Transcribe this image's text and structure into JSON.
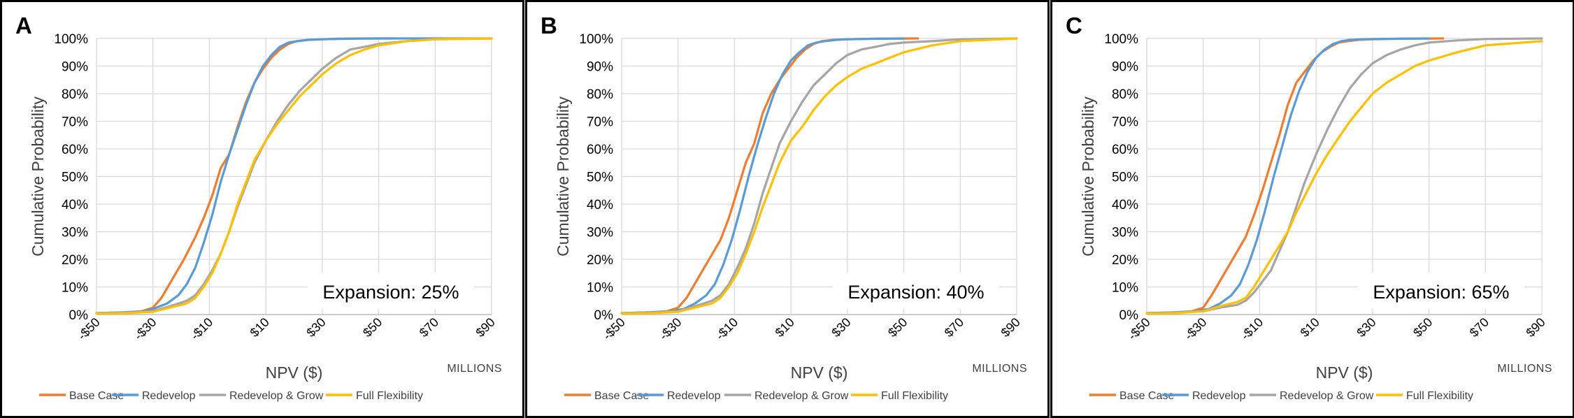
{
  "axis_common": {
    "x_ticks": [
      "-$50",
      "-$30",
      "-$10",
      "$10",
      "$30",
      "$50",
      "$70",
      "$90"
    ],
    "y_ticks": [
      "0%",
      "10%",
      "20%",
      "30%",
      "40%",
      "50%",
      "60%",
      "70%",
      "80%",
      "90%",
      "100%"
    ],
    "xlabel": "NPV ($)",
    "ylabel": "Cumulative Probability",
    "x_units_note": "MILLIONS"
  },
  "legend": [
    {
      "name": "Base Case",
      "color": "#ED7D31"
    },
    {
      "name": "Redevelop",
      "color": "#5B9BD5"
    },
    {
      "name": "Redevelop & Grow",
      "color": "#A5A5A5"
    },
    {
      "name": "Full Flexibility",
      "color": "#FFC000"
    }
  ],
  "chart_data": [
    {
      "panel_label": "A",
      "annotation": "Expansion: 25%",
      "type": "line",
      "xlim": [
        -50,
        90
      ],
      "ylim": [
        0,
        1
      ],
      "grid": true,
      "legend_position": "bottom",
      "series": [
        {
          "name": "Base Case",
          "color": "#ED7D31",
          "x": [
            -50,
            -40,
            -34,
            -30,
            -27,
            -23,
            -19,
            -15,
            -12,
            -9,
            -6,
            -3,
            0,
            3,
            6,
            9,
            12,
            15,
            18,
            21,
            25,
            30,
            35,
            45,
            55
          ],
          "y": [
            0.005,
            0.008,
            0.012,
            0.025,
            0.06,
            0.13,
            0.2,
            0.28,
            0.35,
            0.43,
            0.53,
            0.58,
            0.68,
            0.77,
            0.84,
            0.89,
            0.93,
            0.96,
            0.98,
            0.99,
            0.995,
            0.997,
            0.999,
            1,
            1
          ]
        },
        {
          "name": "Redevelop",
          "color": "#5B9BD5",
          "x": [
            -50,
            -40,
            -33,
            -30,
            -25,
            -21,
            -18,
            -15,
            -12,
            -9,
            -6,
            -3,
            0,
            3,
            6,
            9,
            12,
            15,
            18,
            21,
            25,
            30,
            40,
            50,
            90
          ],
          "y": [
            0.005,
            0.008,
            0.012,
            0.02,
            0.04,
            0.07,
            0.11,
            0.17,
            0.26,
            0.36,
            0.48,
            0.58,
            0.67,
            0.76,
            0.84,
            0.9,
            0.94,
            0.97,
            0.985,
            0.99,
            0.995,
            0.997,
            0.999,
            1,
            1
          ]
        },
        {
          "name": "Redevelop & Grow",
          "color": "#A5A5A5",
          "x": [
            -50,
            -40,
            -30,
            -24,
            -18,
            -15,
            -12,
            -9,
            -6,
            -3,
            0,
            3,
            6,
            10,
            14,
            18,
            22,
            26,
            30,
            35,
            40,
            45,
            50,
            60,
            70,
            90
          ],
          "y": [
            0.004,
            0.006,
            0.012,
            0.03,
            0.05,
            0.07,
            0.11,
            0.16,
            0.22,
            0.3,
            0.39,
            0.47,
            0.55,
            0.63,
            0.7,
            0.76,
            0.81,
            0.85,
            0.89,
            0.93,
            0.96,
            0.97,
            0.98,
            0.99,
            0.997,
            1
          ]
        },
        {
          "name": "Full Flexibility",
          "color": "#FFC000",
          "x": [
            -50,
            -40,
            -30,
            -24,
            -18,
            -15,
            -12,
            -9,
            -6,
            -3,
            0,
            3,
            6,
            10,
            14,
            18,
            22,
            26,
            30,
            35,
            40,
            45,
            50,
            60,
            70,
            90
          ],
          "y": [
            0.004,
            0.005,
            0.01,
            0.025,
            0.04,
            0.06,
            0.1,
            0.15,
            0.22,
            0.3,
            0.4,
            0.48,
            0.56,
            0.63,
            0.69,
            0.74,
            0.79,
            0.83,
            0.87,
            0.91,
            0.94,
            0.96,
            0.975,
            0.99,
            0.997,
            1
          ]
        }
      ]
    },
    {
      "panel_label": "B",
      "annotation": "Expansion: 40%",
      "type": "line",
      "xlim": [
        -50,
        90
      ],
      "ylim": [
        0,
        1
      ],
      "grid": true,
      "legend_position": "bottom",
      "series": [
        {
          "name": "Base Case",
          "color": "#ED7D31",
          "x": [
            -50,
            -40,
            -34,
            -30,
            -27,
            -23,
            -19,
            -15,
            -12,
            -9,
            -6,
            -3,
            0,
            3,
            6,
            9,
            12,
            15,
            18,
            21,
            25,
            30,
            40,
            55
          ],
          "y": [
            0.005,
            0.008,
            0.012,
            0.025,
            0.06,
            0.13,
            0.2,
            0.27,
            0.35,
            0.45,
            0.55,
            0.62,
            0.73,
            0.8,
            0.85,
            0.89,
            0.93,
            0.96,
            0.98,
            0.99,
            0.995,
            0.997,
            0.999,
            1
          ]
        },
        {
          "name": "Redevelop",
          "color": "#5B9BD5",
          "x": [
            -50,
            -40,
            -33,
            -28,
            -24,
            -20,
            -17,
            -14,
            -11,
            -8,
            -5,
            -2,
            1,
            4,
            7,
            10,
            13,
            16,
            19,
            22,
            26,
            30,
            40,
            50
          ],
          "y": [
            0.005,
            0.008,
            0.012,
            0.02,
            0.04,
            0.07,
            0.11,
            0.18,
            0.27,
            0.38,
            0.5,
            0.61,
            0.71,
            0.8,
            0.87,
            0.92,
            0.95,
            0.975,
            0.985,
            0.99,
            0.995,
            0.997,
            0.999,
            1
          ]
        },
        {
          "name": "Redevelop & Grow",
          "color": "#A5A5A5",
          "x": [
            -50,
            -40,
            -30,
            -24,
            -18,
            -15,
            -12,
            -9,
            -6,
            -3,
            0,
            3,
            6,
            10,
            14,
            18,
            22,
            26,
            30,
            35,
            40,
            45,
            50,
            60,
            70,
            90
          ],
          "y": [
            0.004,
            0.006,
            0.012,
            0.03,
            0.05,
            0.07,
            0.11,
            0.17,
            0.24,
            0.33,
            0.44,
            0.53,
            0.62,
            0.7,
            0.77,
            0.83,
            0.87,
            0.91,
            0.94,
            0.96,
            0.97,
            0.98,
            0.985,
            0.99,
            0.997,
            1
          ]
        },
        {
          "name": "Full Flexibility",
          "color": "#FFC000",
          "x": [
            -50,
            -40,
            -30,
            -24,
            -18,
            -15,
            -12,
            -9,
            -6,
            -3,
            0,
            3,
            6,
            10,
            14,
            18,
            22,
            26,
            30,
            35,
            40,
            45,
            50,
            60,
            70,
            90
          ],
          "y": [
            0.004,
            0.005,
            0.01,
            0.025,
            0.04,
            0.06,
            0.1,
            0.15,
            0.22,
            0.3,
            0.39,
            0.47,
            0.55,
            0.63,
            0.68,
            0.74,
            0.79,
            0.83,
            0.86,
            0.89,
            0.91,
            0.93,
            0.95,
            0.975,
            0.99,
            1
          ]
        }
      ]
    },
    {
      "panel_label": "C",
      "annotation": "Expansion: 65%",
      "type": "line",
      "xlim": [
        -50,
        90
      ],
      "ylim": [
        0,
        1
      ],
      "grid": true,
      "legend_position": "bottom",
      "series": [
        {
          "name": "Base Case",
          "color": "#ED7D31",
          "x": [
            -50,
            -40,
            -34,
            -30,
            -27,
            -23,
            -19,
            -15,
            -12,
            -9,
            -6,
            -3,
            0,
            3,
            6,
            9,
            12,
            15,
            18,
            21,
            25,
            30,
            40,
            55
          ],
          "y": [
            0.005,
            0.008,
            0.012,
            0.025,
            0.07,
            0.14,
            0.21,
            0.28,
            0.36,
            0.45,
            0.55,
            0.65,
            0.76,
            0.84,
            0.88,
            0.92,
            0.95,
            0.97,
            0.985,
            0.99,
            0.995,
            0.997,
            0.999,
            1
          ]
        },
        {
          "name": "Redevelop",
          "color": "#5B9BD5",
          "x": [
            -50,
            -40,
            -33,
            -28,
            -24,
            -20,
            -17,
            -14,
            -11,
            -8,
            -5,
            -2,
            1,
            4,
            7,
            10,
            13,
            16,
            19,
            22,
            26,
            30,
            40,
            50
          ],
          "y": [
            0.005,
            0.008,
            0.012,
            0.02,
            0.04,
            0.07,
            0.11,
            0.18,
            0.27,
            0.38,
            0.5,
            0.61,
            0.72,
            0.81,
            0.88,
            0.93,
            0.96,
            0.98,
            0.99,
            0.995,
            0.997,
            0.998,
            0.999,
            1
          ]
        },
        {
          "name": "Redevelop & Grow",
          "color": "#A5A5A5",
          "x": [
            -50,
            -40,
            -30,
            -24,
            -18,
            -15,
            -12,
            -9,
            -6,
            -3,
            0,
            3,
            6,
            10,
            14,
            18,
            22,
            26,
            30,
            35,
            40,
            45,
            50,
            60,
            70,
            90
          ],
          "y": [
            0.004,
            0.006,
            0.012,
            0.025,
            0.035,
            0.05,
            0.08,
            0.12,
            0.16,
            0.23,
            0.3,
            0.39,
            0.48,
            0.58,
            0.67,
            0.75,
            0.82,
            0.87,
            0.91,
            0.94,
            0.96,
            0.975,
            0.985,
            0.993,
            0.998,
            1
          ]
        },
        {
          "name": "Full Flexibility",
          "color": "#FFC000",
          "x": [
            -50,
            -40,
            -30,
            -24,
            -18,
            -15,
            -12,
            -9,
            -6,
            -3,
            0,
            3,
            6,
            10,
            14,
            18,
            22,
            26,
            30,
            35,
            40,
            45,
            50,
            60,
            70,
            90
          ],
          "y": [
            0.004,
            0.005,
            0.012,
            0.03,
            0.045,
            0.06,
            0.1,
            0.15,
            0.2,
            0.25,
            0.3,
            0.37,
            0.43,
            0.51,
            0.58,
            0.64,
            0.7,
            0.75,
            0.8,
            0.84,
            0.87,
            0.9,
            0.92,
            0.95,
            0.975,
            0.99
          ]
        }
      ]
    }
  ]
}
